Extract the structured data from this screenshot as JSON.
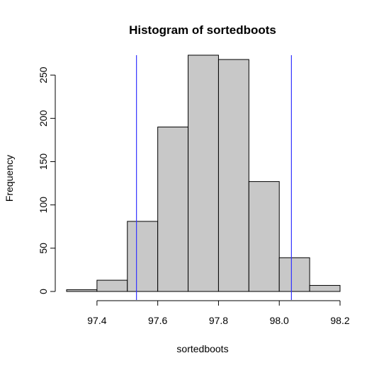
{
  "chart_data": {
    "type": "bar",
    "title": "Histogram of sortedboots",
    "xlabel": "sortedboots",
    "ylabel": "Frequency",
    "bin_edges": [
      97.3,
      97.4,
      97.5,
      97.6,
      97.7,
      97.8,
      97.9,
      98.0,
      98.1,
      98.2
    ],
    "values": [
      2,
      13,
      81,
      190,
      273,
      268,
      127,
      39,
      7
    ],
    "xlim": [
      97.3,
      98.2
    ],
    "ylim": [
      0,
      273
    ],
    "x_ticks": [
      "97.4",
      "97.6",
      "97.8",
      "98.0",
      "98.2"
    ],
    "x_tick_values": [
      97.4,
      97.6,
      97.8,
      98.0,
      98.2
    ],
    "y_ticks": [
      "0",
      "50",
      "100",
      "150",
      "200",
      "250"
    ],
    "y_tick_values": [
      0,
      50,
      100,
      150,
      200,
      250
    ],
    "vlines": [
      97.53,
      98.04
    ],
    "colors": {
      "bar_fill": "#c8c8c8",
      "bar_stroke": "#000000",
      "vline": "#3333ff"
    },
    "grid": false
  }
}
